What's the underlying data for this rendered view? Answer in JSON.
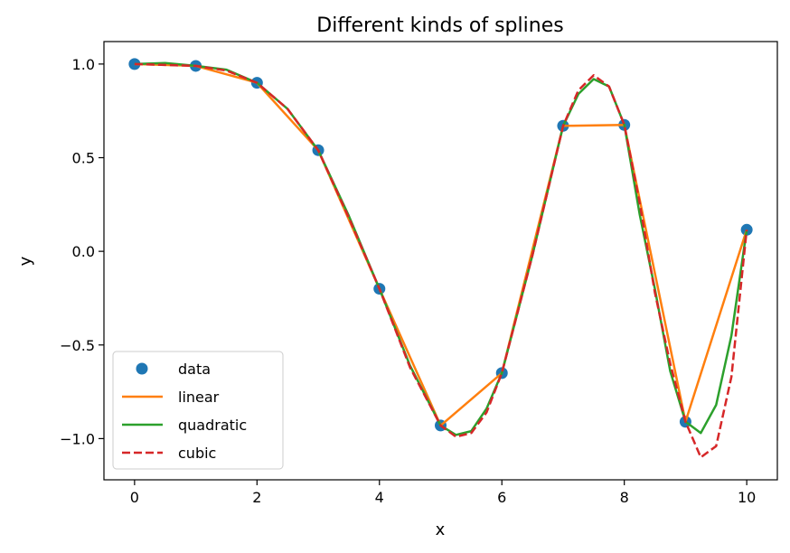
{
  "chart_data": {
    "type": "line",
    "title": "Different kinds of splines",
    "xlabel": "x",
    "ylabel": "y",
    "xlim": [
      -0.5,
      10.5
    ],
    "ylim": [
      -1.22,
      1.12
    ],
    "xticks": [
      0,
      2,
      4,
      6,
      8,
      10
    ],
    "xtick_labels": [
      "0",
      "2",
      "4",
      "6",
      "8",
      "10"
    ],
    "yticks": [
      -1.0,
      -0.5,
      0.0,
      0.5,
      1.0
    ],
    "ytick_labels": [
      "−1.0",
      "−0.5",
      "0.0",
      "0.5",
      "1.0"
    ],
    "grid": false,
    "legend_position": "lower-left",
    "series": [
      {
        "name": "data",
        "style": "markers",
        "color": "#1f77b4",
        "x": [
          0,
          1,
          2,
          3,
          4,
          5,
          6,
          7,
          8,
          9,
          10
        ],
        "y": [
          1.0,
          0.99,
          0.9,
          0.54,
          -0.2,
          -0.93,
          -0.65,
          0.67,
          0.675,
          -0.91,
          0.115
        ]
      },
      {
        "name": "linear",
        "style": "solid",
        "color": "#ff7f0e",
        "x": [
          0,
          1,
          2,
          3,
          4,
          5,
          6,
          7,
          8,
          9,
          10
        ],
        "y": [
          1.0,
          0.99,
          0.9,
          0.54,
          -0.2,
          -0.93,
          -0.65,
          0.67,
          0.675,
          -0.91,
          0.115
        ]
      },
      {
        "name": "quadratic",
        "style": "solid",
        "color": "#2ca02c",
        "x": [
          0,
          0.5,
          1,
          1.5,
          2,
          2.5,
          3,
          3.5,
          4,
          4.5,
          5,
          5.25,
          5.5,
          5.75,
          6,
          6.5,
          7,
          7.25,
          7.5,
          7.75,
          8,
          8.25,
          8.5,
          8.75,
          9,
          9.25,
          9.5,
          9.75,
          10
        ],
        "y": [
          1.0,
          1.005,
          0.99,
          0.97,
          0.9,
          0.76,
          0.54,
          0.19,
          -0.2,
          -0.61,
          -0.93,
          -0.98,
          -0.96,
          -0.84,
          -0.65,
          -0.02,
          0.67,
          0.84,
          0.92,
          0.88,
          0.675,
          0.2,
          -0.2,
          -0.64,
          -0.91,
          -0.97,
          -0.82,
          -0.45,
          0.115
        ]
      },
      {
        "name": "cubic",
        "style": "dashed",
        "color": "#d62728",
        "x": [
          0,
          0.5,
          1,
          1.5,
          2,
          2.5,
          3,
          3.5,
          4,
          4.5,
          5,
          5.25,
          5.5,
          5.75,
          6,
          6.5,
          7,
          7.25,
          7.5,
          7.75,
          8,
          8.25,
          8.5,
          8.75,
          9,
          9.25,
          9.5,
          9.75,
          10
        ],
        "y": [
          1.0,
          0.995,
          0.99,
          0.965,
          0.9,
          0.76,
          0.54,
          0.18,
          -0.2,
          -0.62,
          -0.93,
          -0.99,
          -0.97,
          -0.86,
          -0.65,
          -0.02,
          0.67,
          0.86,
          0.94,
          0.88,
          0.675,
          0.26,
          -0.22,
          -0.6,
          -0.91,
          -1.1,
          -1.04,
          -0.67,
          0.115
        ]
      }
    ]
  }
}
